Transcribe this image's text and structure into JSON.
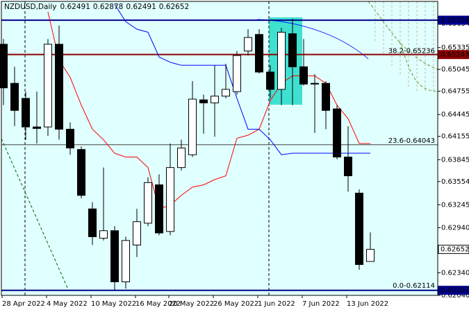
{
  "chart_data": {
    "type": "candlestick",
    "title": "NZDUSD,Daily",
    "header_values": [
      0.62491,
      0.62878,
      0.62491,
      0.62652
    ],
    "categories": [
      "28 Apr 2022",
      null,
      null,
      null,
      "4 May 2022",
      null,
      null,
      null,
      "10 May 2022",
      null,
      null,
      null,
      "16 May 2022",
      null,
      null,
      "20 May 2022",
      null,
      null,
      null,
      "26 May 2022",
      null,
      null,
      null,
      "1 Jun 2022",
      null,
      null,
      null,
      "7 Jun 2022",
      null,
      null,
      null,
      "13 Jun 2022",
      null,
      null
    ],
    "open": [
      0.6538,
      0.6486,
      0.6466,
      0.6428,
      0.6428,
      0.6538,
      0.6425,
      0.6398,
      0.6319,
      0.628,
      0.629,
      0.6222,
      0.6271,
      0.63,
      0.6351,
      0.6289,
      0.6374,
      0.6391,
      0.6464,
      0.646,
      0.6469,
      0.6475,
      0.6529,
      0.6551,
      0.6501,
      0.6478,
      0.6552,
      0.6508,
      0.6486,
      0.6486,
      0.6452,
      0.6388,
      0.634,
      0.62491
    ],
    "high": [
      0.6545,
      0.6508,
      0.6475,
      0.6475,
      0.6545,
      0.6563,
      0.6434,
      0.6402,
      0.6328,
      0.6374,
      0.6296,
      0.6282,
      0.6319,
      0.6361,
      0.6365,
      0.6406,
      0.6411,
      0.6489,
      0.6471,
      0.651,
      0.6512,
      0.6529,
      0.6558,
      0.6558,
      0.651,
      0.656,
      0.6572,
      0.6545,
      0.6498,
      0.6489,
      0.6457,
      0.6429,
      0.6345,
      0.62878
    ],
    "low": [
      0.6457,
      0.6429,
      0.6411,
      0.6406,
      0.6416,
      0.6411,
      0.6391,
      0.6333,
      0.6271,
      0.6277,
      0.621,
      0.6213,
      0.6255,
      0.6296,
      0.6284,
      0.6284,
      0.637,
      0.6388,
      0.6419,
      0.6415,
      0.6466,
      0.6471,
      0.6523,
      0.6499,
      0.6466,
      0.6457,
      0.6457,
      0.6483,
      0.642,
      0.6425,
      0.6385,
      0.6342,
      0.6238,
      0.62491
    ],
    "close": [
      0.648,
      0.645,
      0.6428,
      0.6426,
      0.6538,
      0.6425,
      0.64,
      0.6337,
      0.6282,
      0.629,
      0.6222,
      0.6277,
      0.6302,
      0.6354,
      0.6287,
      0.6374,
      0.64,
      0.6465,
      0.646,
      0.6469,
      0.6478,
      0.6523,
      0.6547,
      0.6501,
      0.6478,
      0.6554,
      0.6508,
      0.6485,
      0.6485,
      0.645,
      0.6388,
      0.6363,
      0.6245,
      0.62652
    ],
    "up_color": "#ffffff",
    "down_color": "#000000",
    "lines": [
      {
        "color": "#ff0000",
        "values": [
          null,
          null,
          null,
          null,
          0.6581,
          0.6517,
          0.6494,
          0.6457,
          0.6425,
          0.6411,
          0.6393,
          0.6388,
          0.6388,
          0.6374,
          0.6319,
          0.6324,
          0.6337,
          0.6348,
          0.6351,
          0.6358,
          0.6363,
          0.6413,
          0.6417,
          0.6425,
          0.6463,
          0.6486,
          0.6496,
          0.6496,
          0.6496,
          0.6486,
          0.6457,
          0.6439,
          0.6406,
          0.6406
        ]
      },
      {
        "color": "#0000ff",
        "values": [
          null,
          null,
          null,
          null,
          null,
          null,
          null,
          null,
          null,
          null,
          0.6591,
          0.6568,
          0.6558,
          0.6554,
          0.6521,
          0.6514,
          0.651,
          0.651,
          0.651,
          0.651,
          0.651,
          0.6466,
          0.6425,
          0.6425,
          0.6411,
          0.6391,
          0.6393,
          0.6393,
          0.6393,
          0.6393,
          0.6393,
          0.6393,
          0.6393,
          0.6393
        ]
      }
    ],
    "levels": [
      {
        "value": 0.657,
        "color": "#00008b",
        "width": 2
      },
      {
        "value": 0.65243,
        "color": "#8b0000",
        "width": 2
      },
      {
        "value": 0.64043,
        "color": "#404040",
        "width": 1
      },
      {
        "value": 0.62107,
        "color": "#00008b",
        "width": 2
      }
    ],
    "annotations": [
      {
        "text": "38.2-0.65236",
        "value": 0.65236
      },
      {
        "text": "23.6-0.64043",
        "value": 0.64043
      },
      {
        "text": "0.0-0.62114",
        "value": 0.62114
      }
    ],
    "price_labels": [
      {
        "value": 0.657,
        "label": "0.65700",
        "color": "#00008b"
      },
      {
        "value": 0.65243,
        "label": "0.65243",
        "color": "#8b0000"
      },
      {
        "value": 0.62652,
        "label": "0.62652",
        "color": "#ffffff"
      },
      {
        "value": 0.62107,
        "label": "0.62107",
        "color": "#00008b"
      }
    ],
    "ylim": [
      0.6204,
      0.6595
    ],
    "yticks": [
      0.65654,
      0.65335,
      0.65045,
      0.64755,
      0.64445,
      0.64155,
      0.63845,
      0.63554,
      0.63245,
      {
        "value": 0.6294,
        "label": "0.62940"
      },
      {
        "value": 0.6234,
        "label": "0.62340"
      },
      {
        "value": 0.6204,
        "label": "0.62040"
      }
    ]
  }
}
